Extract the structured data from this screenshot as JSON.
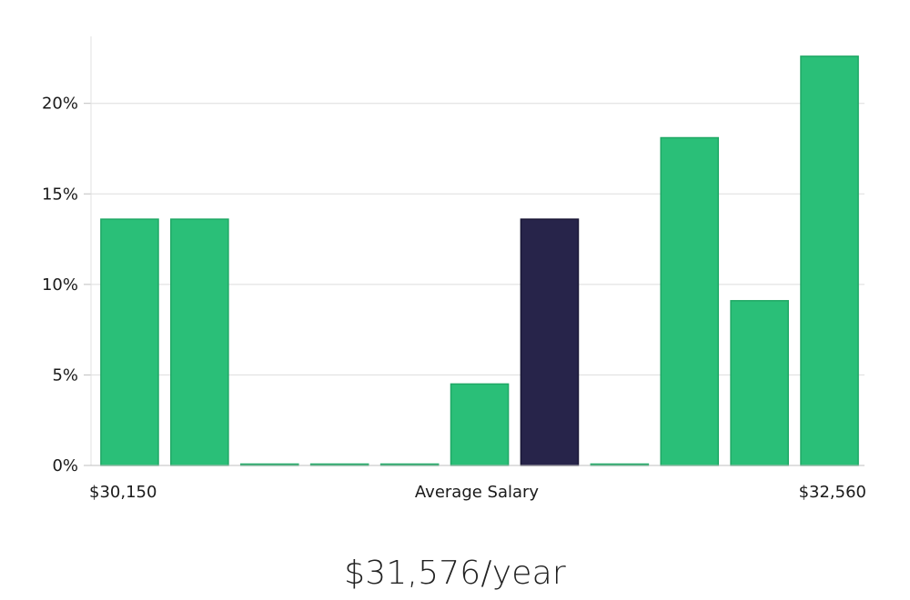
{
  "chart_data": {
    "type": "bar",
    "categories": [
      "1",
      "2",
      "3",
      "4",
      "5",
      "6",
      "7",
      "8",
      "9",
      "10",
      "11"
    ],
    "values": [
      13.6,
      13.6,
      0,
      0,
      0,
      4.5,
      13.6,
      0,
      18.1,
      9.1,
      22.6
    ],
    "highlight_index": 6,
    "ylim": [
      0,
      23.7
    ],
    "yticks": [
      0,
      5,
      10,
      15,
      20
    ],
    "ytick_labels": [
      "0%",
      "5%",
      "10%",
      "15%",
      "20%"
    ],
    "x_range_labels": {
      "min": "$30,150",
      "center": "Average Salary",
      "max": "$32,560"
    },
    "grid": "horizontal",
    "colors": {
      "bar": "#2abf78",
      "bar_stroke": "#1fa865",
      "highlight": "#27244a",
      "highlight_stroke": "#1a1836",
      "grid": "#dddddd",
      "axis": "#bfbfbf"
    }
  },
  "salary": {
    "label": "$31,576/year"
  }
}
